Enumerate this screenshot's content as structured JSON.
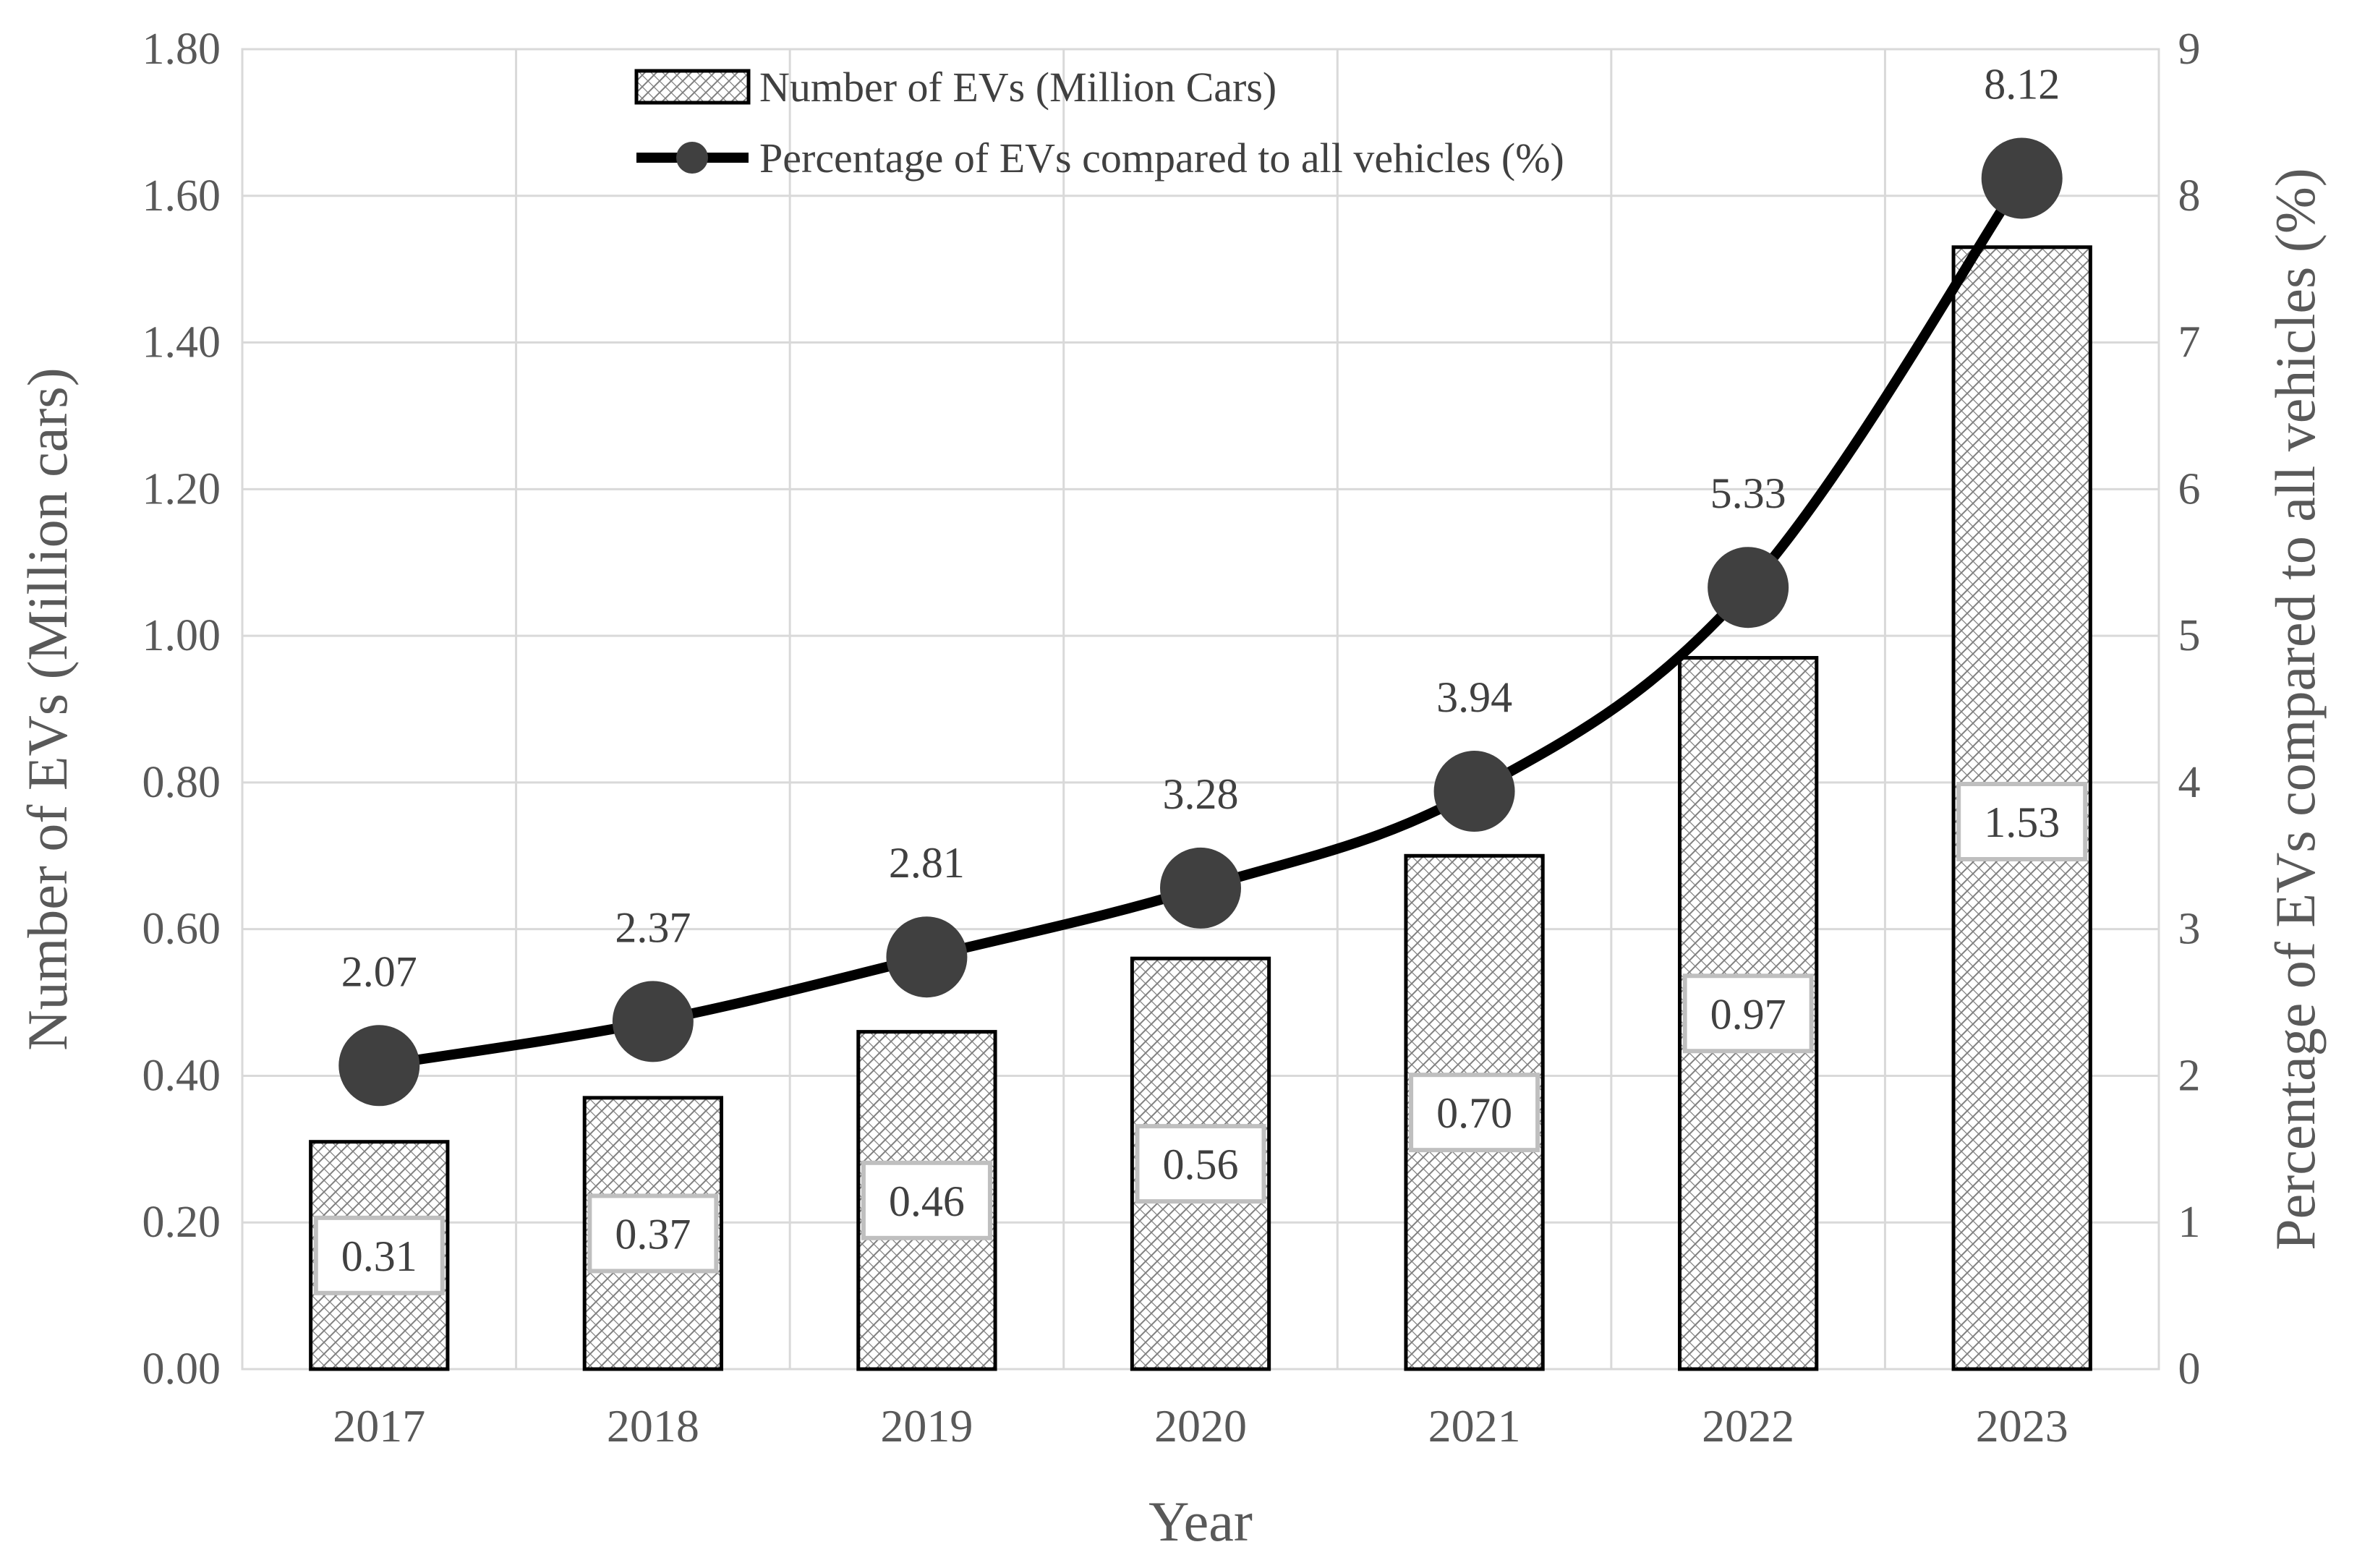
{
  "chart_data": {
    "type": "bar",
    "categories": [
      "2017",
      "2018",
      "2019",
      "2020",
      "2021",
      "2022",
      "2023"
    ],
    "series": [
      {
        "name": "Number of EVs (Million Cars)",
        "type": "bar",
        "axis": "left",
        "values": [
          0.31,
          0.37,
          0.46,
          0.56,
          0.7,
          0.97,
          1.53
        ],
        "labels": [
          "0.31",
          "0.37",
          "0.46",
          "0.56",
          "0.70",
          "0.97",
          "1.53"
        ]
      },
      {
        "name": "Percentage of EVs compared to all vehicles (%)",
        "type": "line",
        "axis": "right",
        "values": [
          2.07,
          2.37,
          2.81,
          3.28,
          3.94,
          5.33,
          8.12
        ],
        "labels": [
          "2.07",
          "2.37",
          "2.81",
          "3.28",
          "3.94",
          "5.33",
          "8.12"
        ]
      }
    ],
    "xlabel": "Year",
    "ylabel": "Number of EVs (Million cars)",
    "y2label": "Percentage of EVs compared to all vehicles (%)",
    "ylim": [
      0,
      1.8
    ],
    "y2lim": [
      0,
      9
    ],
    "yticks": [
      "0.00",
      "0.20",
      "0.40",
      "0.60",
      "0.80",
      "1.00",
      "1.20",
      "1.40",
      "1.60",
      "1.80"
    ],
    "y2ticks": [
      "0",
      "1",
      "2",
      "3",
      "4",
      "5",
      "6",
      "7",
      "8",
      "9"
    ],
    "grid": true,
    "legend_position": "top-center",
    "colors": {
      "bar_fill_pattern": "#7f7f7f",
      "bar_edge": "#000000",
      "line": "#000000",
      "marker": "#404040",
      "grid": "#d9d9d9",
      "text": "#595959"
    }
  }
}
